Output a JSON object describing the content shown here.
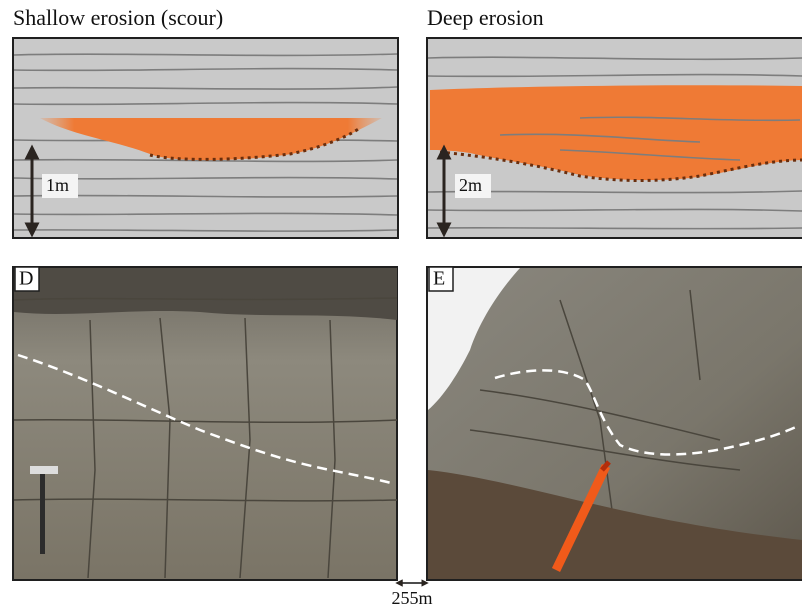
{
  "panels": [
    {
      "title": "Shallow erosion (scour)",
      "scale_label": "1m"
    },
    {
      "title": "Deep erosion",
      "scale_label": "2m"
    }
  ],
  "photos": [
    {
      "label": "D"
    },
    {
      "label": "E"
    }
  ],
  "spacing_label": "255m"
}
